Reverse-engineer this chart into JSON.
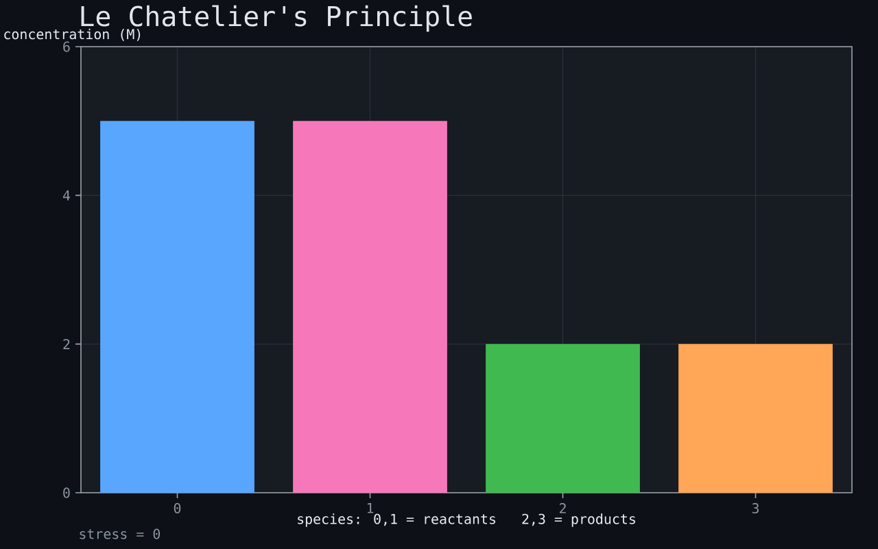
{
  "chart_data": {
    "type": "bar",
    "title": "Le Chatelier's Principle",
    "xlabel": "species: 0,1 = reactants   2,3 = products",
    "ylabel": "concentration (M)",
    "categories": [
      "0",
      "1",
      "2",
      "3"
    ],
    "values": [
      5,
      5,
      2,
      2
    ],
    "colors": [
      "#58a6ff",
      "#f778ba",
      "#3fb950",
      "#ffa657"
    ],
    "ylim": [
      0,
      6
    ],
    "yticks": [
      0,
      2,
      4,
      6
    ],
    "grid": true,
    "annotations": [
      "stress = 0"
    ]
  }
}
